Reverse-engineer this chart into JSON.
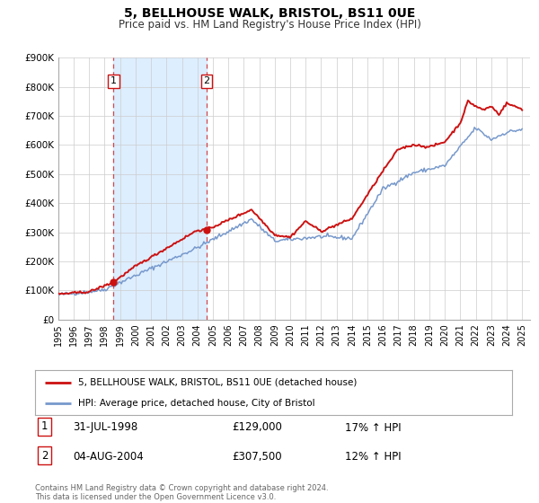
{
  "title": "5, BELLHOUSE WALK, BRISTOL, BS11 0UE",
  "subtitle": "Price paid vs. HM Land Registry's House Price Index (HPI)",
  "ylim": [
    0,
    900000
  ],
  "yticks": [
    0,
    100000,
    200000,
    300000,
    400000,
    500000,
    600000,
    700000,
    800000,
    900000
  ],
  "ytick_labels": [
    "£0",
    "£100K",
    "£200K",
    "£300K",
    "£400K",
    "£500K",
    "£600K",
    "£700K",
    "£800K",
    "£900K"
  ],
  "xlim_start": 1995.0,
  "xlim_end": 2025.5,
  "xtick_years": [
    1995,
    1996,
    1997,
    1998,
    1999,
    2000,
    2001,
    2002,
    2003,
    2004,
    2005,
    2006,
    2007,
    2008,
    2009,
    2010,
    2011,
    2012,
    2013,
    2014,
    2015,
    2016,
    2017,
    2018,
    2019,
    2020,
    2021,
    2022,
    2023,
    2024,
    2025
  ],
  "hpi_color": "#7799cc",
  "price_color": "#cc1111",
  "sale1_x": 1998.58,
  "sale1_y": 129000,
  "sale1_label": "1",
  "sale2_x": 2004.59,
  "sale2_y": 307500,
  "sale2_label": "2",
  "vline1_x": 1998.58,
  "vline2_x": 2004.59,
  "shade_color": "#ddeeff",
  "legend_line1": "5, BELLHOUSE WALK, BRISTOL, BS11 0UE (detached house)",
  "legend_line2": "HPI: Average price, detached house, City of Bristol",
  "table_row1_num": "1",
  "table_row1_date": "31-JUL-1998",
  "table_row1_price": "£129,000",
  "table_row1_hpi": "17% ↑ HPI",
  "table_row2_num": "2",
  "table_row2_date": "04-AUG-2004",
  "table_row2_price": "£307,500",
  "table_row2_hpi": "12% ↑ HPI",
  "footer": "Contains HM Land Registry data © Crown copyright and database right 2024.\nThis data is licensed under the Open Government Licence v3.0.",
  "background_color": "#ffffff",
  "grid_color": "#cccccc"
}
